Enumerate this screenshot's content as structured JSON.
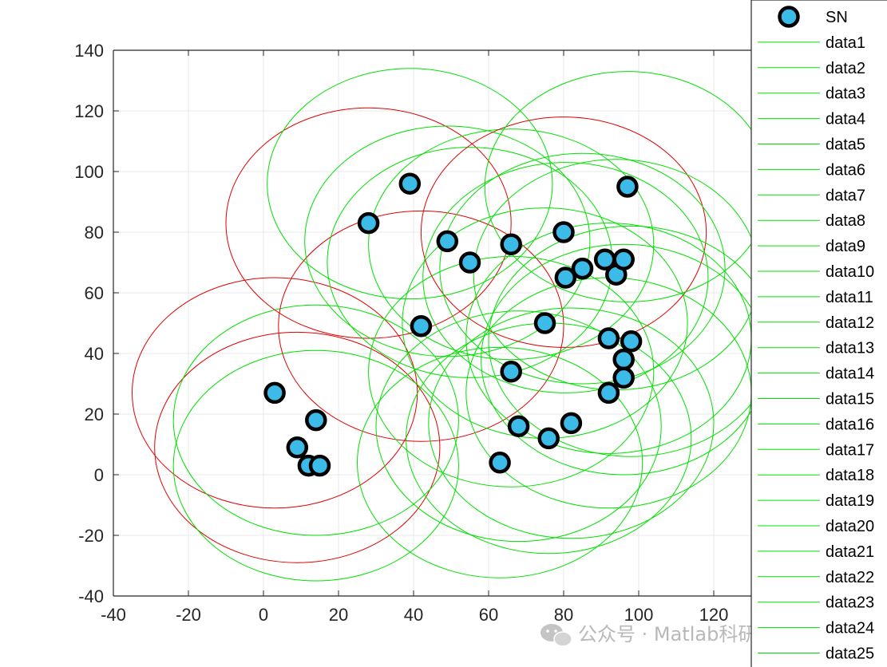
{
  "chart_data": {
    "type": "scatter",
    "title": "",
    "xlabel": "",
    "ylabel": "",
    "xlim": [
      -40,
      130
    ],
    "ylim": [
      -40,
      140
    ],
    "xticks": [
      -40,
      -20,
      0,
      20,
      40,
      60,
      80,
      100,
      120
    ],
    "yticks": [
      -40,
      -20,
      0,
      20,
      40,
      60,
      80,
      100,
      120,
      140
    ],
    "grid": true,
    "legend_position": "right",
    "colors": {
      "marker_fill": "#3cbbe8",
      "marker_edge": "#000000",
      "circle_normal": "#00e000",
      "circle_highlight": "#e00000",
      "axis": "#262626",
      "grid": "#e8e8e8"
    },
    "scatter_series": {
      "name": "SN",
      "points": [
        [
          3,
          27
        ],
        [
          14,
          18
        ],
        [
          9,
          9
        ],
        [
          12,
          3
        ],
        [
          15,
          3
        ],
        [
          28,
          83
        ],
        [
          39,
          96
        ],
        [
          42,
          49
        ],
        [
          49,
          77
        ],
        [
          55,
          70
        ],
        [
          63,
          4
        ],
        [
          66,
          34
        ],
        [
          66,
          76
        ],
        [
          68,
          16
        ],
        [
          75,
          50
        ],
        [
          76,
          12
        ],
        [
          80,
          80
        ],
        [
          80.5,
          65
        ],
        [
          82,
          17
        ],
        [
          85,
          68
        ],
        [
          91,
          71
        ],
        [
          92,
          45
        ],
        [
          92,
          27
        ],
        [
          94,
          66
        ],
        [
          96,
          71
        ],
        [
          96,
          38
        ],
        [
          96,
          32
        ],
        [
          97,
          95
        ],
        [
          98,
          44
        ]
      ]
    },
    "circle_series": [
      {
        "name": "data1",
        "center": [
          3,
          27
        ],
        "radius": 38,
        "color": "red"
      },
      {
        "name": "data2",
        "center": [
          9,
          9
        ],
        "radius": 38,
        "color": "red"
      },
      {
        "name": "data3",
        "center": [
          14,
          3
        ],
        "radius": 38,
        "color": "green"
      },
      {
        "name": "data4",
        "center": [
          14,
          18
        ],
        "radius": 38,
        "color": "green"
      },
      {
        "name": "data5",
        "center": [
          28,
          83
        ],
        "radius": 38,
        "color": "red"
      },
      {
        "name": "data6",
        "center": [
          39,
          96
        ],
        "radius": 38,
        "color": "green"
      },
      {
        "name": "data7",
        "center": [
          42,
          49
        ],
        "radius": 38,
        "color": "red"
      },
      {
        "name": "data8",
        "center": [
          49,
          77
        ],
        "radius": 38,
        "color": "green"
      },
      {
        "name": "data9",
        "center": [
          55,
          70
        ],
        "radius": 38,
        "color": "green"
      },
      {
        "name": "data10",
        "center": [
          63,
          4
        ],
        "radius": 38,
        "color": "green"
      },
      {
        "name": "data11",
        "center": [
          66,
          34
        ],
        "radius": 38,
        "color": "green"
      },
      {
        "name": "data12",
        "center": [
          66,
          76
        ],
        "radius": 38,
        "color": "green"
      },
      {
        "name": "data13",
        "center": [
          68,
          16
        ],
        "radius": 38,
        "color": "green"
      },
      {
        "name": "data14",
        "center": [
          75,
          50
        ],
        "radius": 38,
        "color": "green"
      },
      {
        "name": "data15",
        "center": [
          76,
          12
        ],
        "radius": 38,
        "color": "green"
      },
      {
        "name": "data16",
        "center": [
          80,
          80
        ],
        "radius": 38,
        "color": "red"
      },
      {
        "name": "data17",
        "center": [
          80.5,
          65
        ],
        "radius": 38,
        "color": "green"
      },
      {
        "name": "data18",
        "center": [
          82,
          17
        ],
        "radius": 38,
        "color": "green"
      },
      {
        "name": "data19",
        "center": [
          85,
          68
        ],
        "radius": 38,
        "color": "green"
      },
      {
        "name": "data20",
        "center": [
          92,
          45
        ],
        "radius": 38,
        "color": "green"
      },
      {
        "name": "data21",
        "center": [
          92,
          27
        ],
        "radius": 38,
        "color": "green"
      },
      {
        "name": "data22",
        "center": [
          94,
          66
        ],
        "radius": 38,
        "color": "green"
      },
      {
        "name": "data23",
        "center": [
          96,
          38
        ],
        "radius": 38,
        "color": "green"
      },
      {
        "name": "data24",
        "center": [
          97,
          95
        ],
        "radius": 38,
        "color": "green"
      },
      {
        "name": "data25",
        "center": [
          98,
          44
        ],
        "radius": 38,
        "color": "green"
      }
    ]
  },
  "watermark": {
    "text": "公众号 · Matlab科研助手",
    "icon": "wechat-icon"
  }
}
